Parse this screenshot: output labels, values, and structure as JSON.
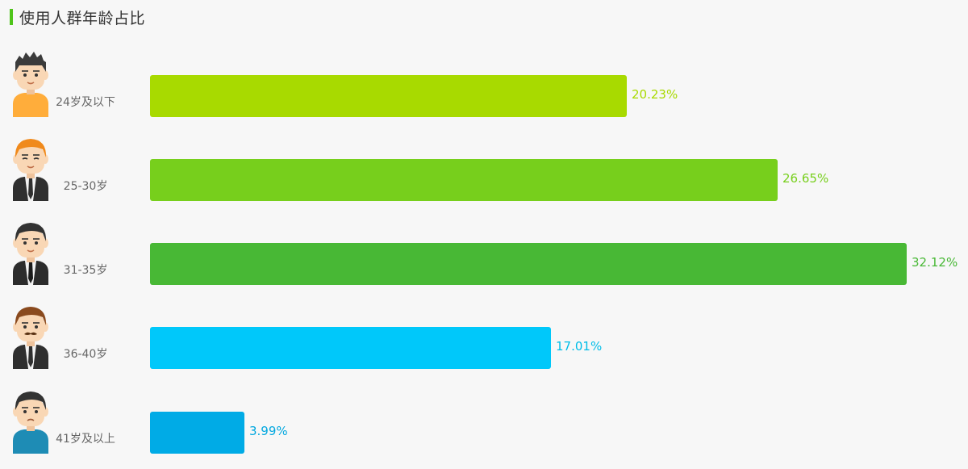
{
  "title": "使用人群年龄占比",
  "colors": {
    "title_accent": "#4fc41a",
    "bars": [
      "#a8da00",
      "#77cf1c",
      "#48b835",
      "#00c8fa",
      "#00abe6"
    ],
    "value_labels": [
      "#a8da00",
      "#77cf1c",
      "#48b835",
      "#00bde8",
      "#00a7df"
    ]
  },
  "chart_data": {
    "type": "bar",
    "orientation": "horizontal",
    "categories": [
      "24岁及以下",
      "25-30岁",
      "31-35岁",
      "36-40岁",
      "41岁及以上"
    ],
    "values": [
      20.23,
      26.65,
      32.12,
      17.01,
      3.99
    ],
    "value_labels": [
      "20.23%",
      "26.65%",
      "32.12%",
      "17.01%",
      "3.99%"
    ],
    "unit": "%",
    "xlim": [
      0,
      32.12
    ],
    "grid": false,
    "legend": "none",
    "avatar_icons": [
      "young-man-yellow-shirt-icon",
      "ginger-man-suit-icon",
      "man-black-suit-icon",
      "mustache-man-suit-icon",
      "older-man-blue-shirt-icon"
    ]
  }
}
